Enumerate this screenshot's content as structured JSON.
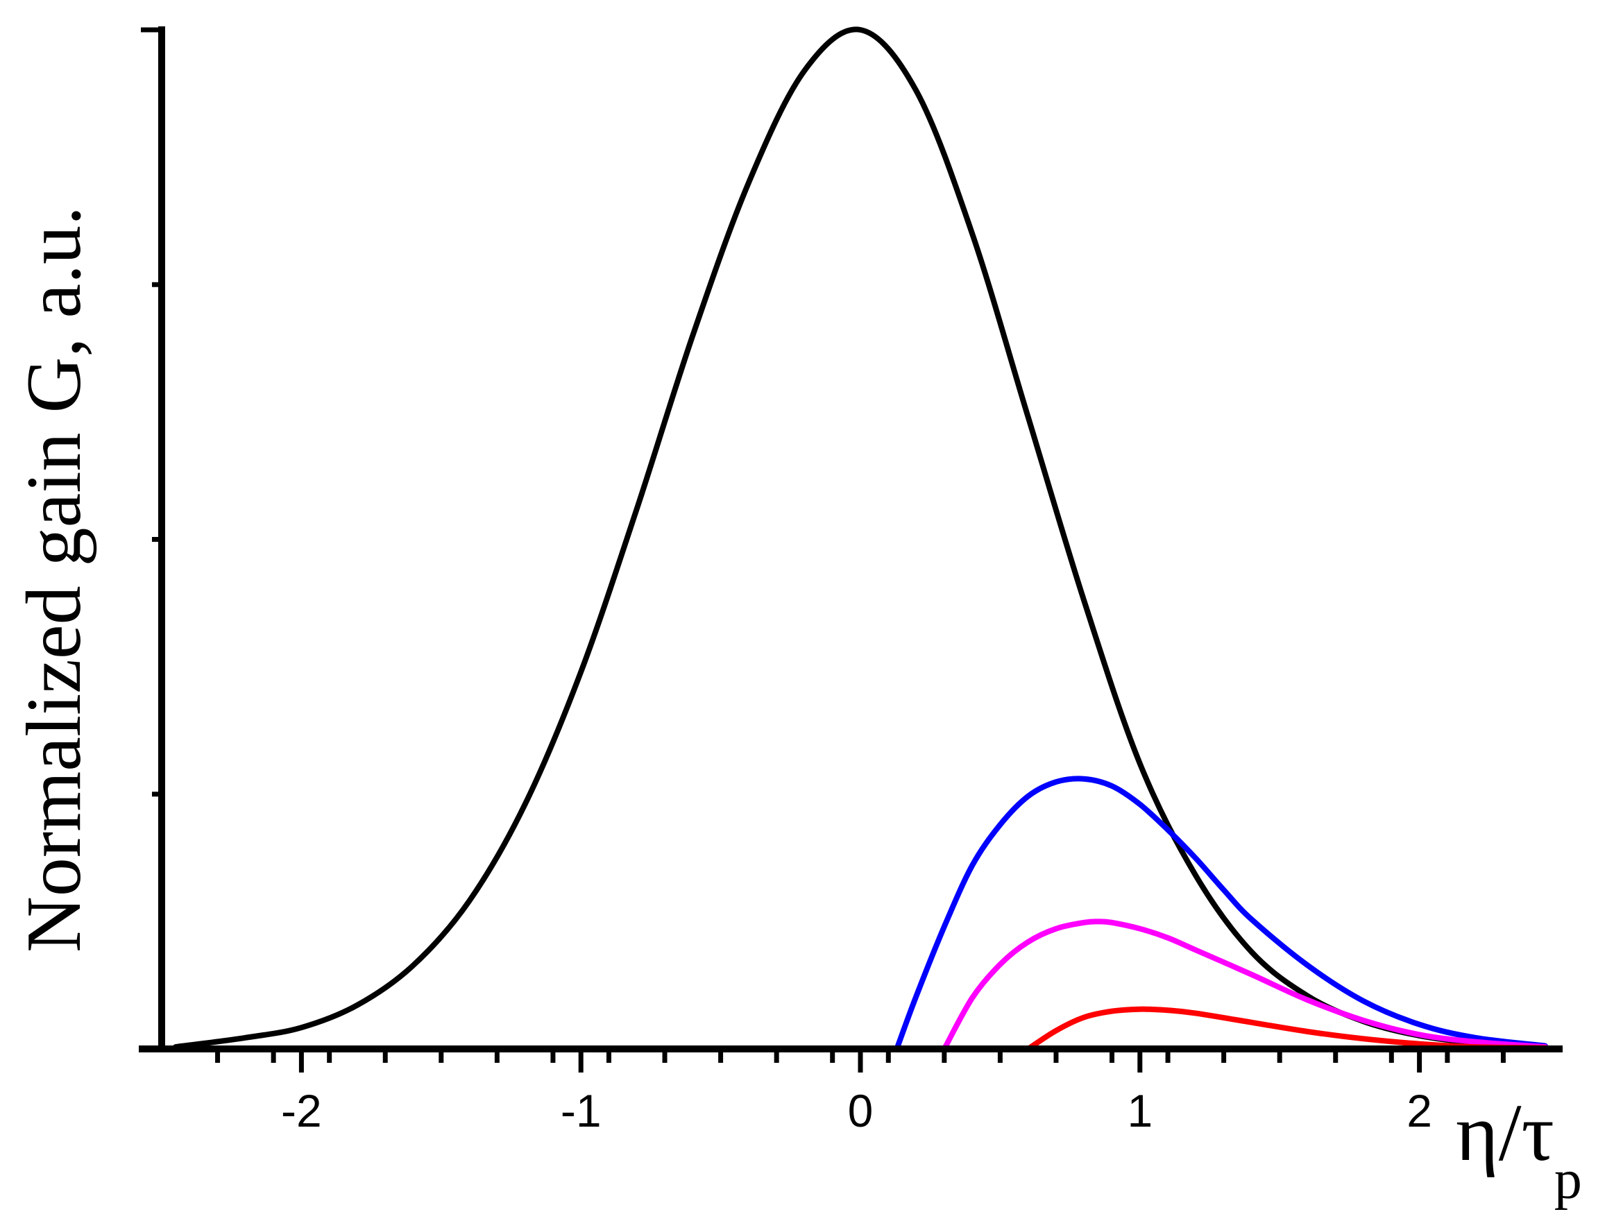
{
  "chart_data": {
    "type": "line",
    "title": "",
    "xlabel": "η/τ",
    "xlabel_subscript": "p",
    "ylabel": "Normalized gain G, a.u.",
    "xlim": [
      -2.5,
      2.5
    ],
    "ylim": [
      0,
      1
    ],
    "x_ticks": [
      -2,
      -1,
      0,
      1,
      2
    ],
    "x_tick_labels": [
      "-2",
      "-1",
      "0",
      "1",
      "2"
    ],
    "x_minor_step": 0.2,
    "y_ticks": [
      0,
      0.25,
      0.5,
      0.75,
      1.0
    ],
    "y_tick_labels_shown": false,
    "grid": false,
    "legend": "none",
    "series": [
      {
        "color": "#000000",
        "x": [
          -2.45,
          -2.2,
          -2.0,
          -1.8,
          -1.6,
          -1.4,
          -1.2,
          -1.0,
          -0.8,
          -0.6,
          -0.4,
          -0.2,
          0.0,
          0.2,
          0.4,
          0.6,
          0.8,
          1.0,
          1.2,
          1.4,
          1.6,
          1.8,
          2.0,
          2.2,
          2.45
        ],
        "y": [
          0.002,
          0.011,
          0.021,
          0.043,
          0.082,
          0.145,
          0.24,
          0.37,
          0.53,
          0.7,
          0.85,
          0.96,
          1.0,
          0.94,
          0.8,
          0.62,
          0.44,
          0.28,
          0.17,
          0.095,
          0.052,
          0.027,
          0.013,
          0.006,
          0.002
        ]
      },
      {
        "color": "#0000ff",
        "x": [
          0.13,
          0.2,
          0.3,
          0.4,
          0.5,
          0.6,
          0.7,
          0.8,
          0.9,
          1.0,
          1.1,
          1.2,
          1.3,
          1.4,
          1.6,
          1.8,
          2.0,
          2.2,
          2.45
        ],
        "y": [
          0.0,
          0.052,
          0.12,
          0.18,
          0.22,
          0.248,
          0.262,
          0.265,
          0.258,
          0.24,
          0.215,
          0.187,
          0.156,
          0.127,
          0.082,
          0.047,
          0.024,
          0.011,
          0.003
        ]
      },
      {
        "color": "#ff00ff",
        "x": [
          0.3,
          0.4,
          0.5,
          0.6,
          0.7,
          0.8,
          0.85,
          0.9,
          1.0,
          1.1,
          1.2,
          1.4,
          1.6,
          1.8,
          2.0,
          2.2,
          2.45
        ],
        "y": [
          0.0,
          0.05,
          0.083,
          0.105,
          0.118,
          0.124,
          0.125,
          0.124,
          0.118,
          0.109,
          0.097,
          0.073,
          0.048,
          0.028,
          0.014,
          0.007,
          0.002
        ]
      },
      {
        "color": "#ff0000",
        "x": [
          0.6,
          0.7,
          0.8,
          0.9,
          1.0,
          1.1,
          1.2,
          1.4,
          1.6,
          1.8,
          2.0,
          2.2,
          2.45
        ],
        "y": [
          0.0,
          0.018,
          0.031,
          0.037,
          0.039,
          0.038,
          0.035,
          0.026,
          0.017,
          0.01,
          0.005,
          0.002,
          0.001
        ]
      }
    ]
  }
}
